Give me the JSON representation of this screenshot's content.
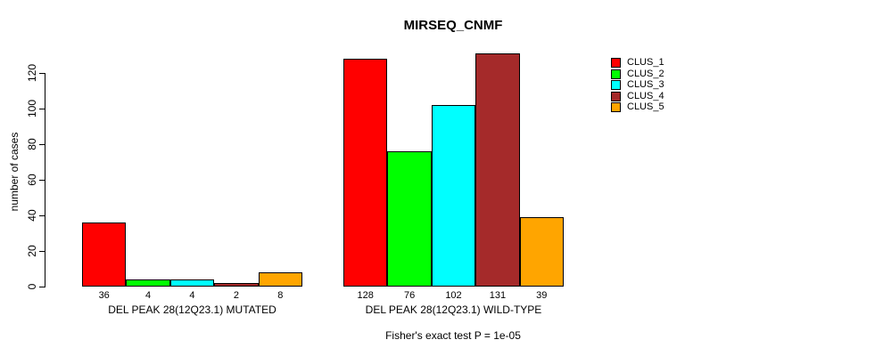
{
  "chart_data": {
    "type": "bar",
    "title": "MIRSEQ_CNMF",
    "ylabel": "number of cases",
    "footnote": "Fisher's exact test P = 1e-05",
    "ylim": [
      0,
      120
    ],
    "yticks": [
      0,
      20,
      40,
      60,
      80,
      100,
      120
    ],
    "grid": false,
    "legend_position": "top-right",
    "bar_value_labels": true,
    "categories": [
      "DEL PEAK 28(12Q23.1) MUTATED",
      "DEL PEAK 28(12Q23.1) WILD-TYPE"
    ],
    "series": [
      {
        "name": "CLUS_1",
        "color": "#FF0000",
        "values": [
          36,
          128
        ]
      },
      {
        "name": "CLUS_2",
        "color": "#00FF00",
        "values": [
          4,
          76
        ]
      },
      {
        "name": "CLUS_3",
        "color": "#00FFFF",
        "values": [
          4,
          102
        ]
      },
      {
        "name": "CLUS_4",
        "color": "#A52A2A",
        "values": [
          2,
          131
        ]
      },
      {
        "name": "CLUS_5",
        "color": "#FFA500",
        "values": [
          8,
          39
        ]
      }
    ],
    "colors": {
      "background": "#FFFFFF",
      "axis": "#000000",
      "text": "#000000"
    }
  }
}
